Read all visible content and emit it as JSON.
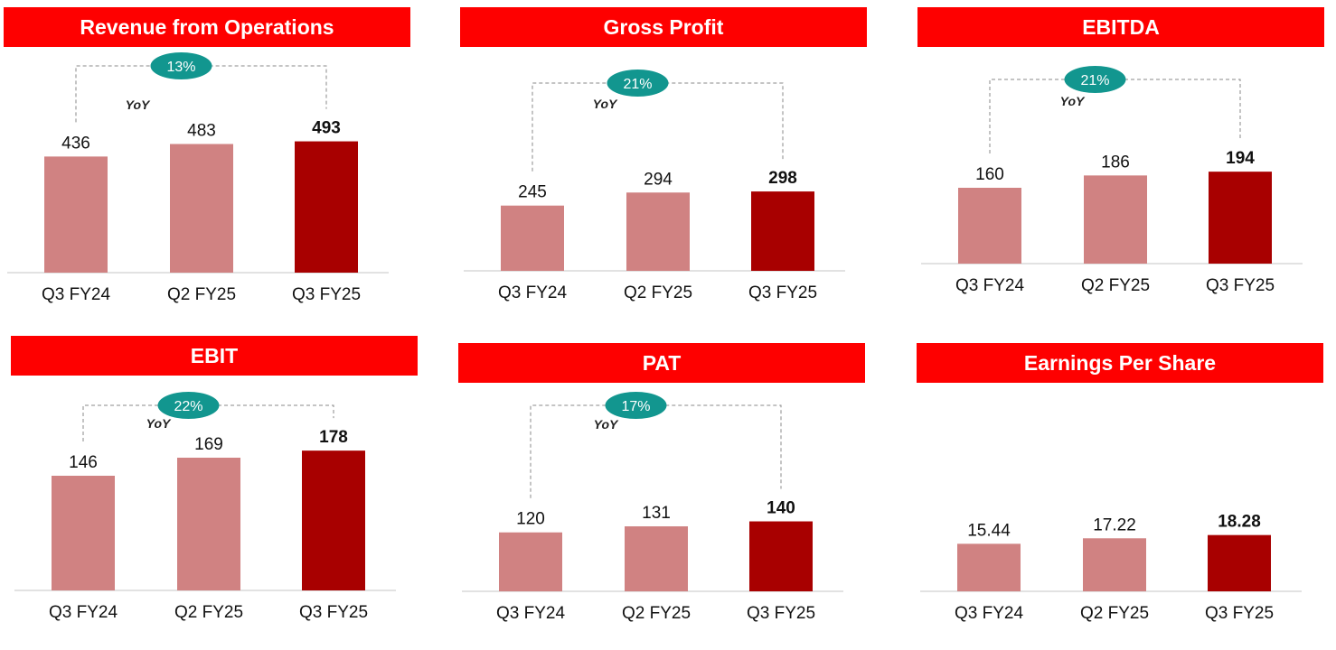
{
  "colors": {
    "banner": "#fe0000",
    "bar_light": "#d08282",
    "bar_dark": "#a80000",
    "pill": "#12968f",
    "bracket": "#888888",
    "baseline": "#d9d9d9"
  },
  "chart_data": [
    {
      "type": "bar",
      "title": "Revenue from Operations",
      "categories": [
        "Q3 FY24",
        "Q2 FY25",
        "Q3 FY25"
      ],
      "values": [
        436,
        483,
        493
      ],
      "labels": [
        "436",
        "483",
        "493"
      ],
      "yoy": {
        "label": "YoY",
        "pct": "13%"
      }
    },
    {
      "type": "bar",
      "title": "Gross Profit",
      "categories": [
        "Q3 FY24",
        "Q2 FY25",
        "Q3 FY25"
      ],
      "values": [
        245,
        294,
        298
      ],
      "labels": [
        "245",
        "294",
        "298"
      ],
      "yoy": {
        "label": "YoY",
        "pct": "21%"
      }
    },
    {
      "type": "bar",
      "title": "EBITDA",
      "categories": [
        "Q3 FY24",
        "Q2 FY25",
        "Q3 FY25"
      ],
      "values": [
        160,
        186,
        194
      ],
      "labels": [
        "160",
        "186",
        "194"
      ],
      "yoy": {
        "label": "YoY",
        "pct": "21%"
      }
    },
    {
      "type": "bar",
      "title": "EBIT",
      "categories": [
        "Q3 FY24",
        "Q2 FY25",
        "Q3 FY25"
      ],
      "values": [
        146,
        169,
        178
      ],
      "labels": [
        "146",
        "169",
        "178"
      ],
      "yoy": {
        "label": "YoY",
        "pct": "22%"
      }
    },
    {
      "type": "bar",
      "title": "PAT",
      "categories": [
        "Q3 FY24",
        "Q2 FY25",
        "Q3 FY25"
      ],
      "values": [
        120,
        131,
        140
      ],
      "labels": [
        "120",
        "131",
        "140"
      ],
      "yoy": {
        "label": "YoY",
        "pct": "17%"
      }
    },
    {
      "type": "bar",
      "title": "Earnings Per Share",
      "categories": [
        "Q3 FY24",
        "Q2 FY25",
        "Q3 FY25"
      ],
      "values": [
        15.44,
        17.22,
        18.28
      ],
      "labels": [
        "15.44",
        "17.22",
        "18.28"
      ]
    }
  ]
}
